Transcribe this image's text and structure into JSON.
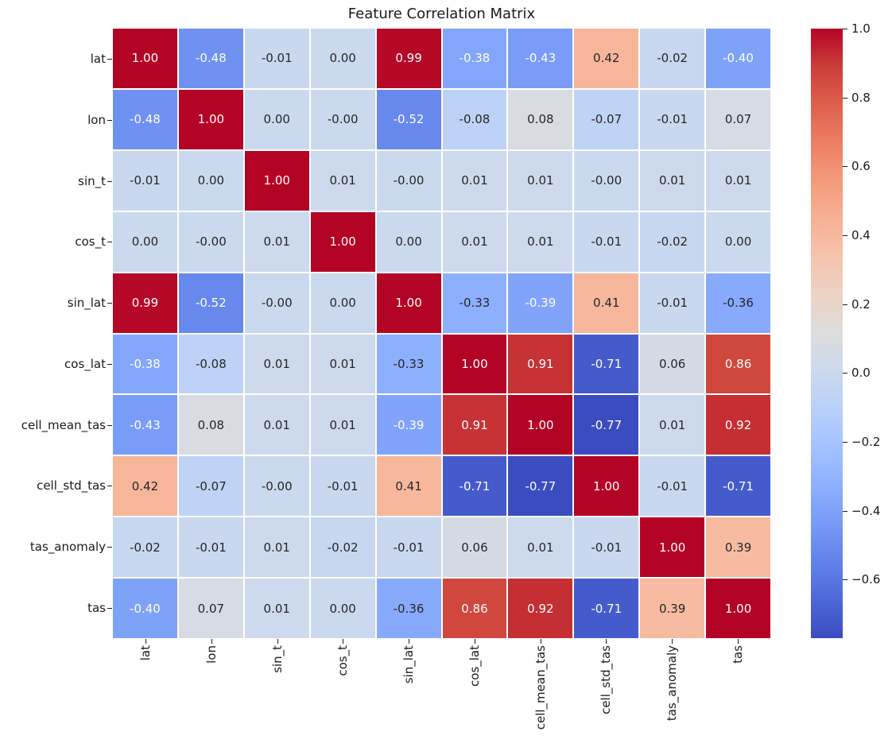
{
  "figure": {
    "title": "Feature Correlation Matrix",
    "background": "#ffffff"
  },
  "chart_data": {
    "type": "heatmap",
    "title": "Feature Correlation Matrix",
    "xlabel": "",
    "ylabel": "",
    "x_labels": [
      "lat",
      "lon",
      "sin_t",
      "cos_t",
      "sin_lat",
      "cos_lat",
      "cell_mean_tas",
      "cell_std_tas",
      "tas_anomaly",
      "tas"
    ],
    "y_labels": [
      "lat",
      "lon",
      "sin_t",
      "cos_t",
      "sin_lat",
      "cos_lat",
      "cell_mean_tas",
      "cell_std_tas",
      "tas_anomaly",
      "tas"
    ],
    "matrix": [
      [
        "1.00",
        "-0.48",
        "-0.01",
        "0.00",
        "0.99",
        "-0.38",
        "-0.43",
        "0.42",
        "-0.02",
        "-0.40"
      ],
      [
        "-0.48",
        "1.00",
        "0.00",
        "-0.00",
        "-0.52",
        "-0.08",
        "0.08",
        "-0.07",
        "-0.01",
        "0.07"
      ],
      [
        "-0.01",
        "0.00",
        "1.00",
        "0.01",
        "-0.00",
        "0.01",
        "0.01",
        "-0.00",
        "0.01",
        "0.01"
      ],
      [
        "0.00",
        "-0.00",
        "0.01",
        "1.00",
        "0.00",
        "0.01",
        "0.01",
        "-0.01",
        "-0.02",
        "0.00"
      ],
      [
        "0.99",
        "-0.52",
        "-0.00",
        "0.00",
        "1.00",
        "-0.33",
        "-0.39",
        "0.41",
        "-0.01",
        "-0.36"
      ],
      [
        "-0.38",
        "-0.08",
        "0.01",
        "0.01",
        "-0.33",
        "1.00",
        "0.91",
        "-0.71",
        "0.06",
        "0.86"
      ],
      [
        "-0.43",
        "0.08",
        "0.01",
        "0.01",
        "-0.39",
        "0.91",
        "1.00",
        "-0.77",
        "0.01",
        "0.92"
      ],
      [
        "0.42",
        "-0.07",
        "-0.00",
        "-0.01",
        "0.41",
        "-0.71",
        "-0.77",
        "1.00",
        "-0.01",
        "-0.71"
      ],
      [
        "-0.02",
        "-0.01",
        "0.01",
        "-0.02",
        "-0.01",
        "0.06",
        "0.01",
        "-0.01",
        "1.00",
        "0.39"
      ],
      [
        "-0.40",
        "0.07",
        "0.01",
        "0.00",
        "-0.36",
        "0.86",
        "0.92",
        "-0.71",
        "0.39",
        "1.00"
      ]
    ],
    "colormap": "coolwarm",
    "vmin": -0.77,
    "vmax": 1.0,
    "colorbar_position": "right",
    "colorbar_tick_labels": [
      "1.0",
      "0.8",
      "0.6",
      "0.4",
      "0.2",
      "0.0",
      "−0.2",
      "−0.4",
      "−0.6"
    ],
    "colorbar_tick_values": [
      1.0,
      0.8,
      0.6,
      0.4,
      0.2,
      0.0,
      -0.2,
      -0.4,
      -0.6
    ],
    "grid_line_color": "#ffffff",
    "annotation_format": ".2f"
  },
  "colors": {
    "coolwarm_anchors": [
      "#3b4cc0",
      "#4d68d7",
      "#6282ea",
      "#779af7",
      "#8db0fe",
      "#a3c2ff",
      "#b8d0f9",
      "#ccd9ee",
      "#dddddd",
      "#ecd3c5",
      "#f5c4ad",
      "#f7b194",
      "#f49a7b",
      "#ec7f63",
      "#de604d",
      "#cb3e38",
      "#b40426"
    ],
    "annotation_dark_text": "#262626",
    "annotation_light_text": "#ffffff",
    "axis_text": "#1a1a1a"
  }
}
